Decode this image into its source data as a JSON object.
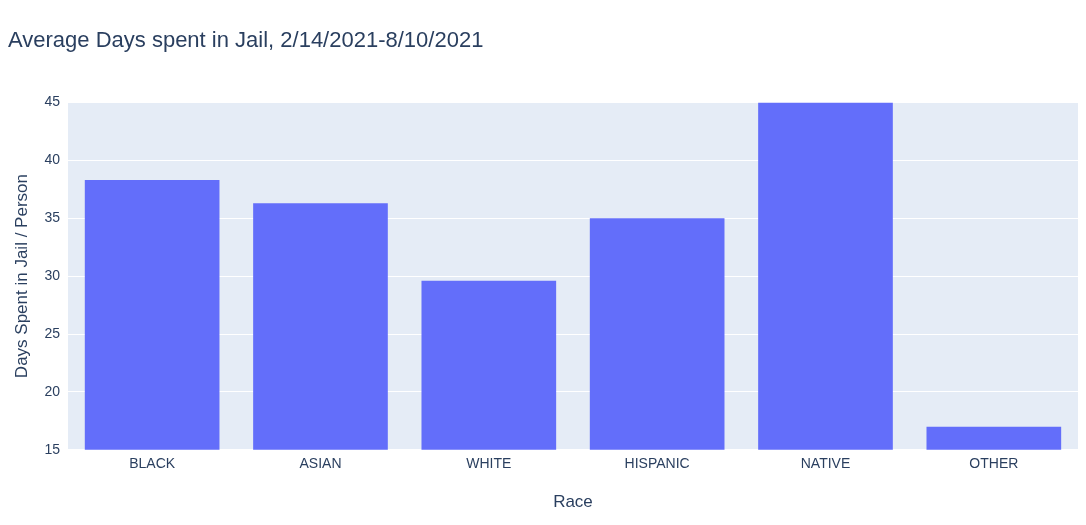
{
  "chart_data": {
    "type": "bar",
    "title": "Average Days spent in Jail, 2/14/2021-8/10/2021",
    "xlabel": "Race",
    "ylabel": "Days Spent in Jail / Person",
    "categories": [
      "BLACK",
      "ASIAN",
      "WHITE",
      "HISPANIC",
      "NATIVE",
      "OTHER"
    ],
    "values": [
      38.3,
      36.3,
      29.6,
      35.0,
      45,
      17.0
    ],
    "color": "#636efa",
    "ylim": [
      15,
      45
    ],
    "yticks": [
      15,
      20,
      25,
      30,
      35,
      40,
      45
    ],
    "grid": "y",
    "legend": false
  }
}
